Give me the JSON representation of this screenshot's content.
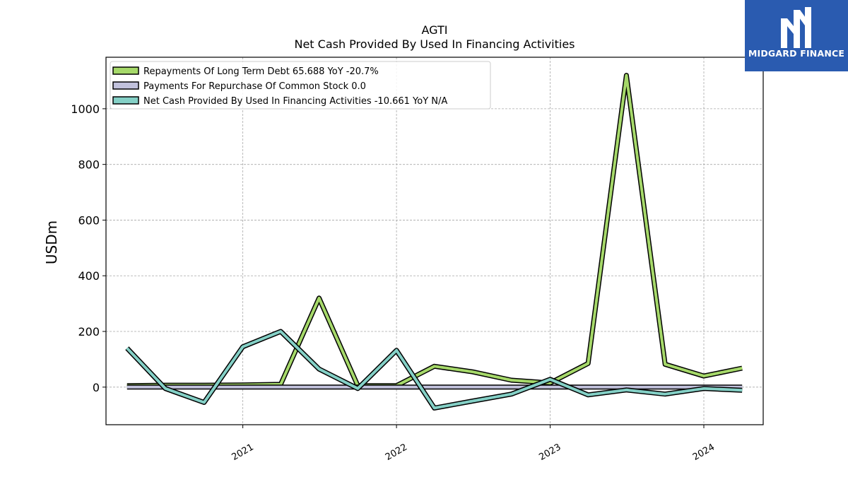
{
  "chart_data": {
    "type": "line",
    "title": "AGTI",
    "subtitle": "Net Cash Provided By Used In Financing Activities",
    "ylabel": "USDm",
    "xlabel": "",
    "x": [
      "2020-04-01",
      "2020-07-01",
      "2020-10-01",
      "2021-01-01",
      "2021-04-01",
      "2021-07-01",
      "2021-10-01",
      "2022-01-01",
      "2022-04-01",
      "2022-07-01",
      "2022-10-01",
      "2023-01-01",
      "2023-04-01",
      "2023-07-01",
      "2023-10-01",
      "2024-01-01",
      "2024-04-01"
    ],
    "x_ticks": [
      "2021",
      "2022",
      "2023",
      "2024"
    ],
    "y_ticks": [
      "0",
      "200",
      "400",
      "600",
      "800",
      "1000"
    ],
    "ylim": [
      -135,
      1185
    ],
    "grid": true,
    "legend_position": "top-left",
    "series": [
      {
        "name": "Repayments Of Long Term Debt",
        "legend_label": "Repayments Of Long Term Debt  65.688 YoY -20.7%",
        "color": "#a6d96a",
        "values": [
          5,
          7,
          7,
          8,
          10,
          320,
          5,
          5,
          75,
          55,
          25,
          15,
          85,
          1120,
          82,
          40,
          68
        ]
      },
      {
        "name": "Payments For Repurchase Of Common Stock",
        "legend_label": "Payments For Repurchase Of Common Stock  0.0",
        "color": "#c1c1dc",
        "values": [
          0,
          0,
          0,
          0,
          0,
          0,
          0,
          0,
          0,
          0,
          0,
          0,
          0,
          0,
          0,
          0,
          0
        ]
      },
      {
        "name": "Net Cash Provided By Used In Financing Activities",
        "legend_label": "Net Cash Provided By Used In Financing Activities  -10.661 YoY N/A",
        "color": "#84d0c6",
        "values": [
          140,
          -5,
          -55,
          145,
          200,
          65,
          -5,
          132,
          -75,
          -50,
          -25,
          28,
          -28,
          -10,
          -25,
          -5,
          -11
        ]
      }
    ]
  },
  "logo": {
    "text": "MIDGARD FINANCE",
    "icon": "midgard-logo-icon",
    "color": "#2a5bb0"
  }
}
